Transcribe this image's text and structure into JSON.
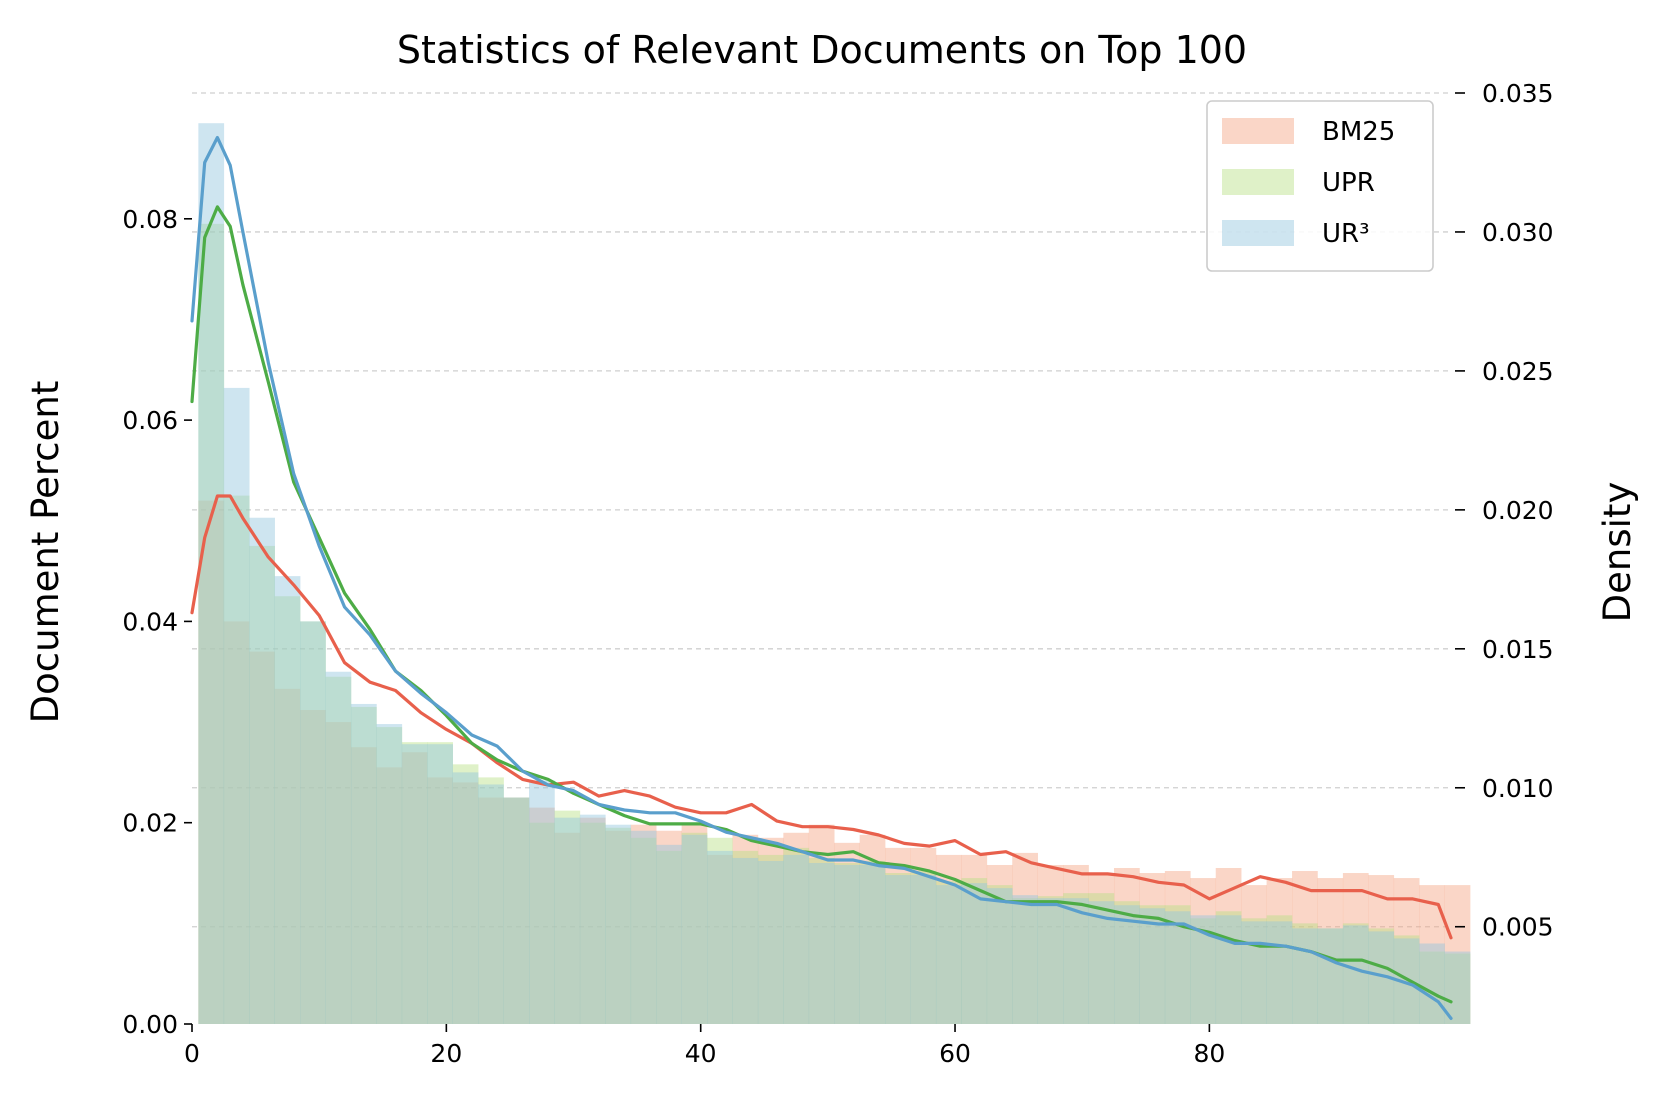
{
  "chart_data": {
    "type": "histogram_with_density",
    "title": "Statistics of Relevant Documents on Top 100",
    "xlabel": "",
    "ylabel_left": "Document Percent",
    "ylabel_right": "Density",
    "xlim": [
      0,
      99
    ],
    "ylim_left": [
      0,
      0.0925
    ],
    "ylim_right": [
      0.0015,
      0.035
    ],
    "x_ticks": [
      "0",
      "20",
      "40",
      "60",
      "80"
    ],
    "x_tick_values": [
      0,
      20,
      40,
      60,
      80
    ],
    "y_left_ticks": [
      "0.00",
      "0.02",
      "0.04",
      "0.06",
      "0.08"
    ],
    "y_left_tick_values": [
      0.0,
      0.02,
      0.04,
      0.06,
      0.08
    ],
    "y_right_ticks": [
      "0.005",
      "0.010",
      "0.015",
      "0.020",
      "0.025",
      "0.030",
      "0.035"
    ],
    "y_right_tick_values": [
      0.005,
      0.01,
      0.015,
      0.02,
      0.025,
      0.03,
      0.035
    ],
    "grid": "horizontal dashed (right axis)",
    "legend_position": "top-right",
    "bin_start": 0.5,
    "bin_width": 2,
    "series": [
      {
        "name": "BM25",
        "color": "#f4a582",
        "line_color": "#e8604c",
        "hist": [
          0.052,
          0.04,
          0.037,
          0.0333,
          0.0312,
          0.03,
          0.0275,
          0.0255,
          0.027,
          0.0245,
          0.024,
          0.0225,
          0.0225,
          0.0215,
          0.019,
          0.0205,
          0.0192,
          0.0198,
          0.0192,
          0.0198,
          0.0168,
          0.0188,
          0.0185,
          0.019,
          0.0198,
          0.018,
          0.0188,
          0.0175,
          0.0175,
          0.0168,
          0.0168,
          0.0158,
          0.017,
          0.0158,
          0.0158,
          0.015,
          0.0155,
          0.015,
          0.0152,
          0.0145,
          0.0155,
          0.0138,
          0.0145,
          0.0152,
          0.0145,
          0.015,
          0.0148,
          0.0145,
          0.0138,
          0.0138
        ],
        "density_x": [
          0,
          1,
          2,
          3,
          4,
          6,
          8,
          10,
          12,
          14,
          16,
          18,
          20,
          22,
          24,
          26,
          28,
          30,
          32,
          34,
          36,
          38,
          40,
          42,
          44,
          46,
          48,
          50,
          52,
          54,
          56,
          58,
          60,
          62,
          64,
          66,
          68,
          70,
          72,
          74,
          76,
          78,
          80,
          82,
          84,
          86,
          88,
          90,
          92,
          94,
          96,
          98,
          99
        ],
        "density": [
          0.0163,
          0.019,
          0.0205,
          0.0205,
          0.0197,
          0.0183,
          0.0173,
          0.0162,
          0.0145,
          0.0138,
          0.0135,
          0.0127,
          0.0121,
          0.0116,
          0.0109,
          0.0103,
          0.0101,
          0.0102,
          0.0097,
          0.0099,
          0.0097,
          0.0093,
          0.0091,
          0.0091,
          0.0094,
          0.0088,
          0.0086,
          0.0086,
          0.0085,
          0.0083,
          0.008,
          0.0079,
          0.0081,
          0.0076,
          0.0077,
          0.0073,
          0.0071,
          0.0069,
          0.0069,
          0.0068,
          0.0066,
          0.0065,
          0.006,
          0.0064,
          0.0068,
          0.0066,
          0.0063,
          0.0063,
          0.0063,
          0.006,
          0.006,
          0.0058,
          0.0046
        ]
      },
      {
        "name": "UPR",
        "color": "#b8e186",
        "line_color": "#4dac46",
        "hist": [
          0.0795,
          0.0525,
          0.0475,
          0.0425,
          0.04,
          0.0345,
          0.0315,
          0.0295,
          0.028,
          0.028,
          0.0258,
          0.0245,
          0.0225,
          0.02,
          0.0212,
          0.02,
          0.0195,
          0.0185,
          0.0172,
          0.019,
          0.0185,
          0.0172,
          0.0168,
          0.0175,
          0.0165,
          0.016,
          0.0162,
          0.015,
          0.0152,
          0.0142,
          0.0145,
          0.0138,
          0.0125,
          0.0127,
          0.013,
          0.013,
          0.0122,
          0.0118,
          0.0118,
          0.0105,
          0.0112,
          0.0105,
          0.0108,
          0.01,
          0.0095,
          0.01,
          0.0095,
          0.0088,
          0.0072,
          0.007
        ],
        "density_x": [
          0,
          1,
          2,
          3,
          4,
          6,
          8,
          10,
          12,
          14,
          16,
          18,
          20,
          22,
          24,
          26,
          28,
          30,
          32,
          34,
          36,
          38,
          40,
          42,
          44,
          46,
          48,
          50,
          52,
          54,
          56,
          58,
          60,
          62,
          64,
          66,
          68,
          70,
          72,
          74,
          76,
          78,
          80,
          82,
          84,
          86,
          88,
          90,
          92,
          94,
          96,
          98,
          99
        ],
        "density": [
          0.0239,
          0.0298,
          0.0309,
          0.0302,
          0.0281,
          0.0246,
          0.021,
          0.019,
          0.017,
          0.0157,
          0.0142,
          0.0135,
          0.0126,
          0.0116,
          0.011,
          0.0106,
          0.0103,
          0.0098,
          0.0094,
          0.009,
          0.0087,
          0.0087,
          0.0087,
          0.0085,
          0.0081,
          0.0079,
          0.0077,
          0.0076,
          0.0077,
          0.0073,
          0.0072,
          0.007,
          0.0067,
          0.0063,
          0.0059,
          0.0059,
          0.0059,
          0.0058,
          0.0056,
          0.0054,
          0.0053,
          0.005,
          0.0048,
          0.0045,
          0.0043,
          0.0043,
          0.0041,
          0.0038,
          0.0038,
          0.0035,
          0.003,
          0.0025,
          0.0023
        ]
      },
      {
        "name": "UR³",
        "color": "#92c5de",
        "line_color": "#5a9fcc",
        "hist": [
          0.0895,
          0.0632,
          0.0503,
          0.0445,
          0.04,
          0.035,
          0.0318,
          0.0298,
          0.0278,
          0.0278,
          0.025,
          0.0238,
          0.0225,
          0.0242,
          0.0205,
          0.0208,
          0.0198,
          0.0192,
          0.0178,
          0.0188,
          0.0172,
          0.0165,
          0.0162,
          0.0168,
          0.016,
          0.0158,
          0.0158,
          0.0148,
          0.0148,
          0.0138,
          0.014,
          0.0135,
          0.0128,
          0.0125,
          0.0125,
          0.0122,
          0.0118,
          0.0115,
          0.0112,
          0.0108,
          0.0108,
          0.0102,
          0.0102,
          0.0095,
          0.0095,
          0.0098,
          0.0092,
          0.0085,
          0.008,
          0.0072
        ],
        "density_x": [
          0,
          1,
          2,
          3,
          4,
          6,
          8,
          10,
          12,
          14,
          16,
          18,
          20,
          22,
          24,
          26,
          28,
          30,
          32,
          34,
          36,
          38,
          40,
          42,
          44,
          46,
          48,
          50,
          52,
          54,
          56,
          58,
          60,
          62,
          64,
          66,
          68,
          70,
          72,
          74,
          76,
          78,
          80,
          82,
          84,
          86,
          88,
          90,
          92,
          94,
          96,
          98,
          99
        ],
        "density": [
          0.0268,
          0.0325,
          0.0334,
          0.0324,
          0.03,
          0.0253,
          0.0213,
          0.0187,
          0.0165,
          0.0155,
          0.0142,
          0.0134,
          0.0127,
          0.0119,
          0.0115,
          0.0106,
          0.0101,
          0.0099,
          0.0094,
          0.0092,
          0.0091,
          0.0091,
          0.0088,
          0.0084,
          0.0082,
          0.008,
          0.0077,
          0.0074,
          0.0074,
          0.0072,
          0.0071,
          0.0068,
          0.0065,
          0.006,
          0.0059,
          0.0058,
          0.0058,
          0.0055,
          0.0053,
          0.0052,
          0.0051,
          0.0051,
          0.0047,
          0.0044,
          0.0044,
          0.0043,
          0.0041,
          0.0037,
          0.0034,
          0.0032,
          0.0029,
          0.0023,
          0.0017
        ]
      }
    ]
  }
}
